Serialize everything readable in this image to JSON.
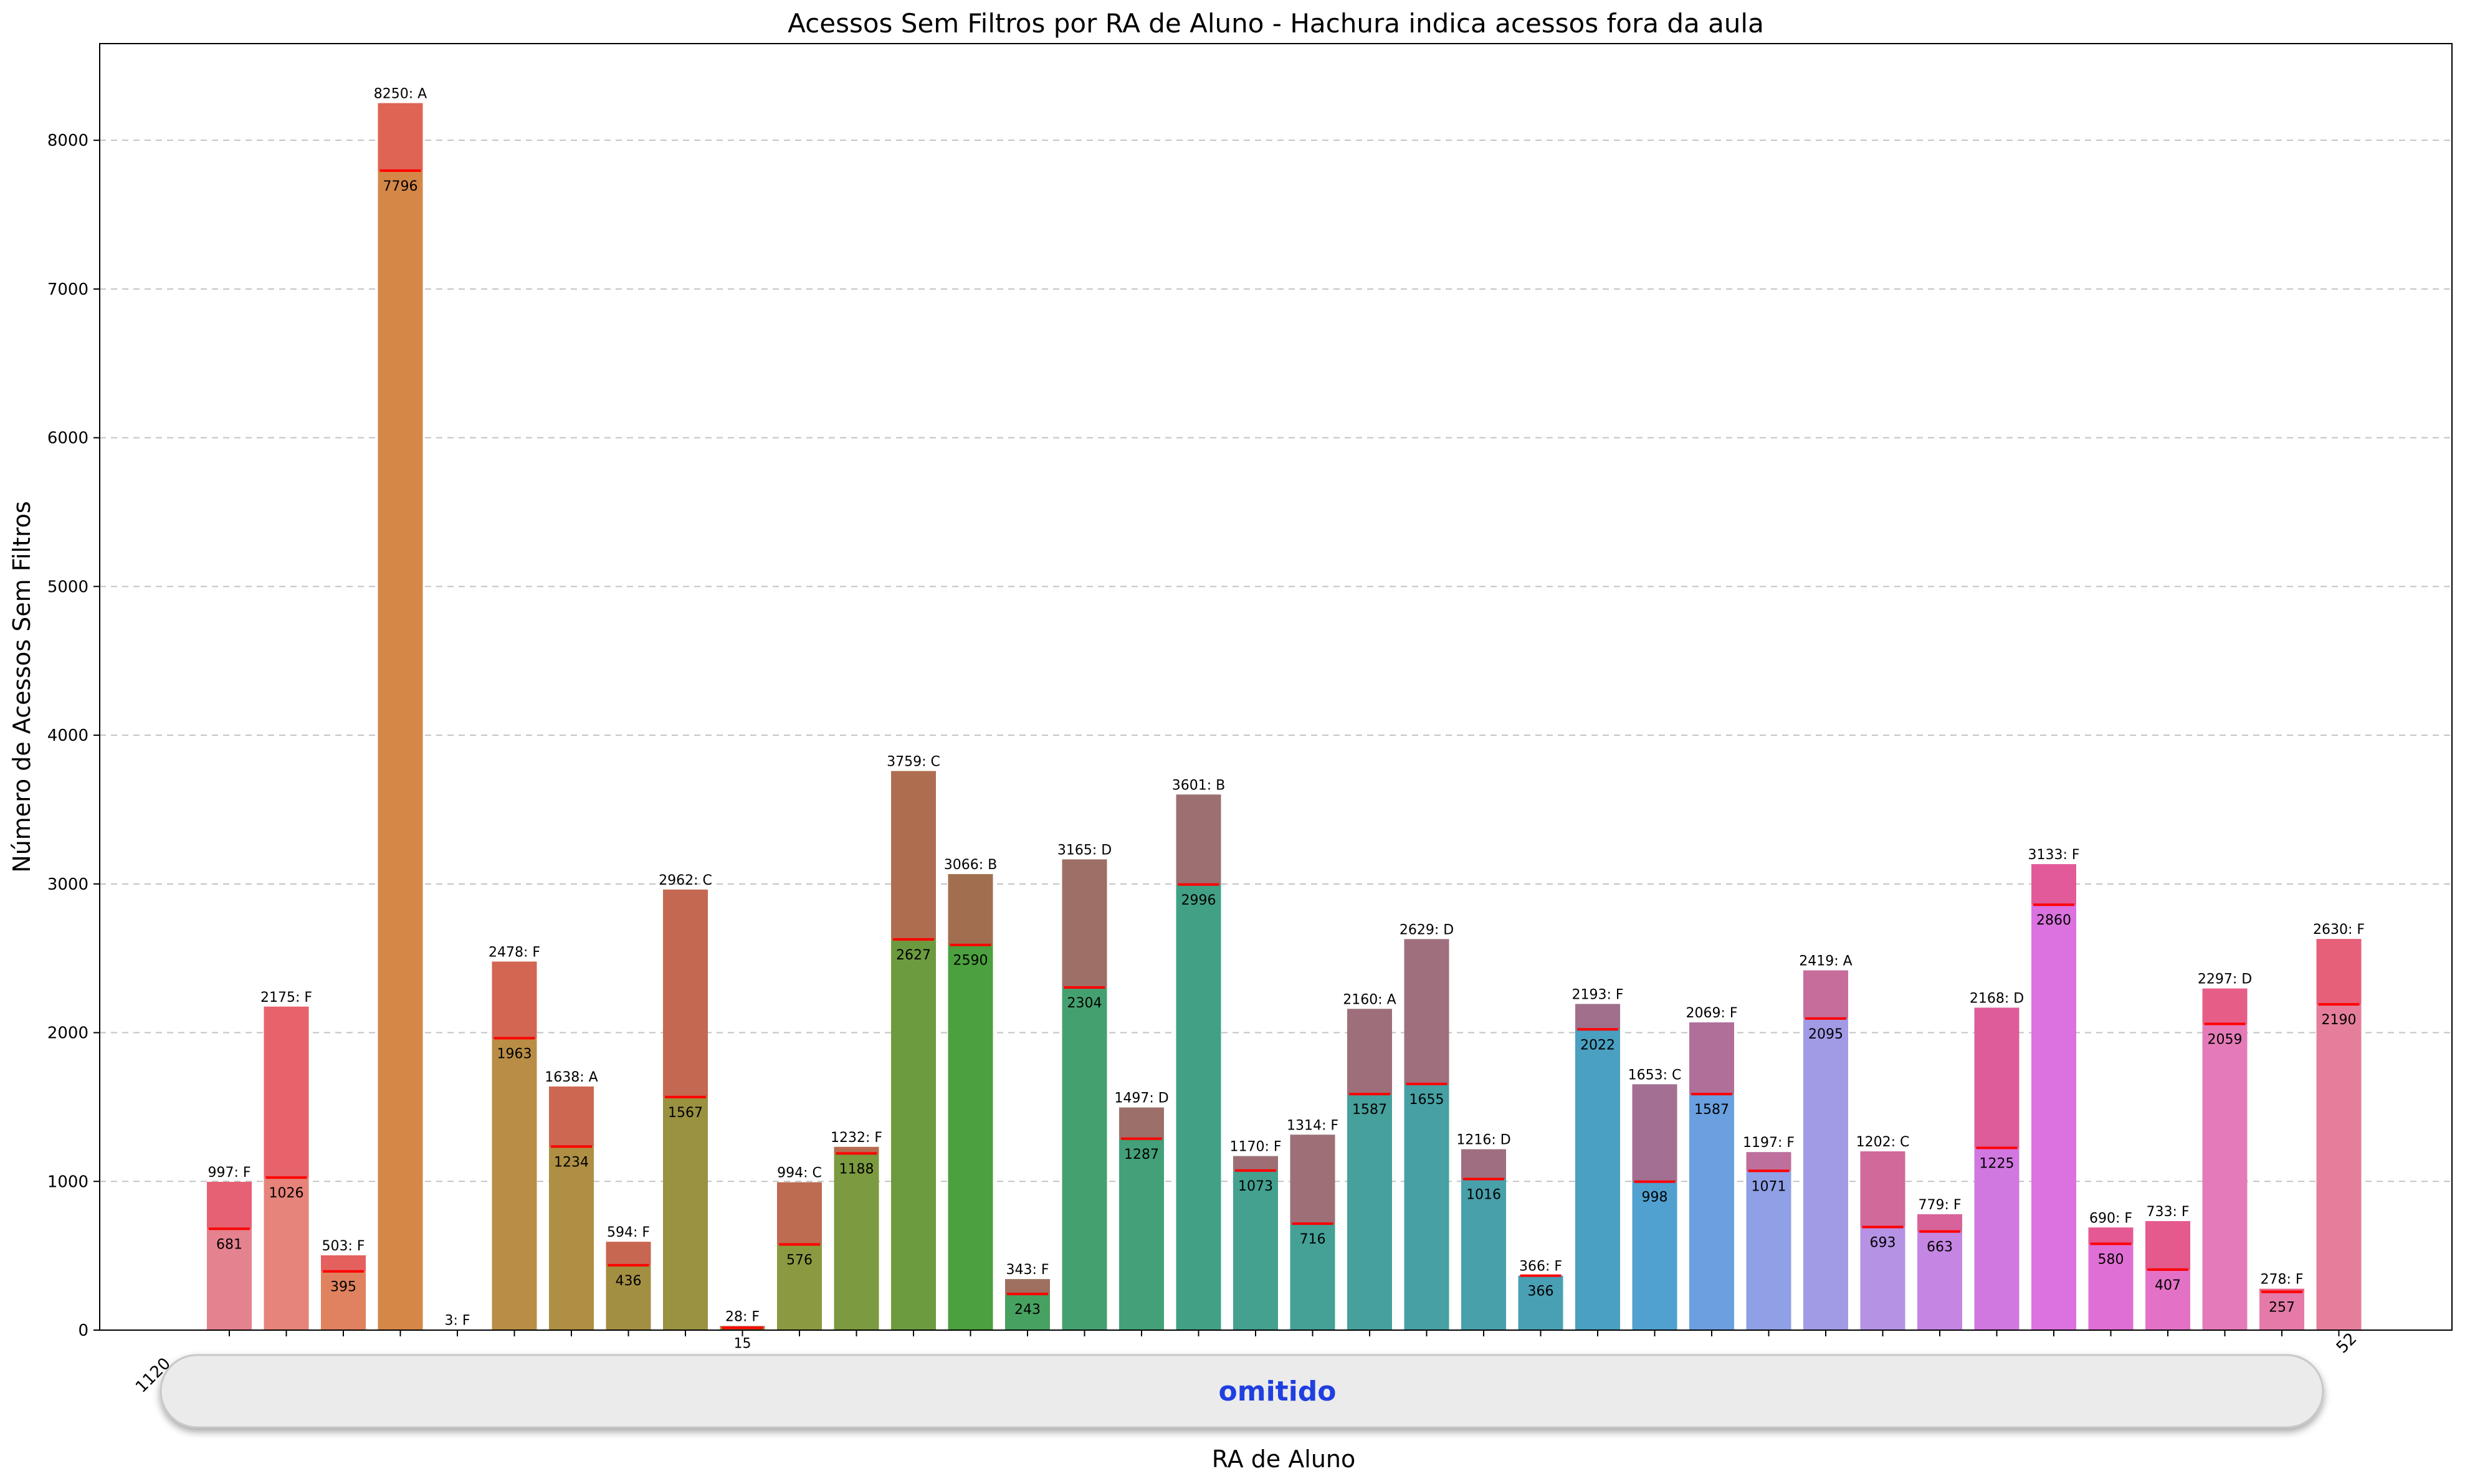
{
  "chart_data": {
    "type": "bar",
    "title": "Acessos Sem Filtros por RA de Aluno - Hachura indica acessos fora da aula",
    "xlabel": "RA de Aluno",
    "ylabel": "Número de Acessos Sem Filtros",
    "ylim": [
      0,
      8650
    ],
    "yticks": [
      0,
      1000,
      2000,
      3000,
      4000,
      5000,
      6000,
      7000,
      8000
    ],
    "grid": "horizontal dashed",
    "x_tick_fragments": [
      "1120",
      "52"
    ],
    "redaction_label": "omitido",
    "bars": [
      {
        "total": 997,
        "grade": "F",
        "top_label": "997: F",
        "in_class": 681,
        "color": "#e5828f"
      },
      {
        "total": 2175,
        "grade": "F",
        "top_label": "2175: F",
        "in_class": 1026,
        "color": "#e6837a"
      },
      {
        "total": 503,
        "grade": "F",
        "top_label": "503: F",
        "in_class": 395,
        "color": "#e0825f"
      },
      {
        "total": 8250,
        "grade": "A",
        "top_label": "8250: A",
        "in_class": 7796,
        "color": "#d58748"
      },
      {
        "total": 3,
        "grade": "F",
        "top_label": "3: F",
        "in_class": null,
        "color": "#c98a43"
      },
      {
        "total": 2478,
        "grade": "F",
        "top_label": "2478: F",
        "in_class": 1963,
        "color": "#b98d45"
      },
      {
        "total": 1638,
        "grade": "A",
        "top_label": "1638: A",
        "in_class": 1234,
        "color": "#ae8f44"
      },
      {
        "total": 594,
        "grade": "F",
        "top_label": "594: F",
        "in_class": 436,
        "color": "#a38f42"
      },
      {
        "total": 2962,
        "grade": "C",
        "top_label": "2962: C",
        "in_class": 1567,
        "color": "#9a9141"
      },
      {
        "total": 28,
        "grade": "F",
        "top_label": "28: F",
        "in_class": 15,
        "color": "#939540"
      },
      {
        "total": 994,
        "grade": "C",
        "top_label": "994: C",
        "in_class": 576,
        "color": "#8b9a40"
      },
      {
        "total": 1232,
        "grade": "F",
        "top_label": "1232: F",
        "in_class": 1188,
        "color": "#7c9a40"
      },
      {
        "total": 3759,
        "grade": "C",
        "top_label": "3759: C",
        "in_class": 2627,
        "color": "#6c9b3f"
      },
      {
        "total": 3066,
        "grade": "B",
        "top_label": "3066: B",
        "in_class": 2590,
        "color": "#4ca03f"
      },
      {
        "total": 343,
        "grade": "F",
        "top_label": "343: F",
        "in_class": 243,
        "color": "#47a160"
      },
      {
        "total": 3165,
        "grade": "D",
        "top_label": "3165: D",
        "in_class": 2304,
        "color": "#45a070"
      },
      {
        "total": 1497,
        "grade": "D",
        "top_label": "1497: D",
        "in_class": 1287,
        "color": "#43a078"
      },
      {
        "total": 3601,
        "grade": "B",
        "top_label": "3601: B",
        "in_class": 2996,
        "color": "#42a085"
      },
      {
        "total": 1170,
        "grade": "F",
        "top_label": "1170: F",
        "in_class": 1073,
        "color": "#44a08f"
      },
      {
        "total": 1314,
        "grade": "F",
        "top_label": "1314: F",
        "in_class": 716,
        "color": "#45a095"
      },
      {
        "total": 2160,
        "grade": "A",
        "top_label": "2160: A",
        "in_class": 1587,
        "color": "#46a09c"
      },
      {
        "total": 2629,
        "grade": "D",
        "top_label": "2629: D",
        "in_class": 1655,
        "color": "#47a0a3"
      },
      {
        "total": 1216,
        "grade": "D",
        "top_label": "1216: D",
        "in_class": 1016,
        "color": "#48a0ab"
      },
      {
        "total": 366,
        "grade": "F",
        "top_label": "366: F",
        "in_class": 366,
        "color": "#49a0b5"
      },
      {
        "total": 2193,
        "grade": "F",
        "top_label": "2193: F",
        "in_class": 2022,
        "color": "#4aa0c0"
      },
      {
        "total": 1653,
        "grade": "C",
        "top_label": "1653: C",
        "in_class": 998,
        "color": "#50a0d0"
      },
      {
        "total": 2069,
        "grade": "F",
        "top_label": "2069: F",
        "in_class": 1587,
        "color": "#6aa0e0"
      },
      {
        "total": 1197,
        "grade": "F",
        "top_label": "1197: F",
        "in_class": 1071,
        "color": "#8fa0e6"
      },
      {
        "total": 2419,
        "grade": "A",
        "top_label": "2419: A",
        "in_class": 2095,
        "color": "#a19be6"
      },
      {
        "total": 1202,
        "grade": "C",
        "top_label": "1202: C",
        "in_class": 693,
        "color": "#b592e4"
      },
      {
        "total": 779,
        "grade": "F",
        "top_label": "779: F",
        "in_class": 663,
        "color": "#c486e2"
      },
      {
        "total": 2168,
        "grade": "D",
        "top_label": "2168: D",
        "in_class": 1225,
        "color": "#d177e0"
      },
      {
        "total": 3133,
        "grade": "F",
        "top_label": "3133: F",
        "in_class": 2860,
        "color": "#db72df"
      },
      {
        "total": 690,
        "grade": "F",
        "top_label": "690: F",
        "in_class": 580,
        "color": "#e06fd5"
      },
      {
        "total": 733,
        "grade": "F",
        "top_label": "733: F",
        "in_class": 407,
        "color": "#e372c6"
      },
      {
        "total": 2297,
        "grade": "D",
        "top_label": "2297: D",
        "in_class": 2059,
        "color": "#e47bb8"
      },
      {
        "total": 278,
        "grade": "F",
        "top_label": "278: F",
        "in_class": 257,
        "color": "#e57aa8"
      },
      {
        "total": 2630,
        "grade": "F",
        "top_label": "2630: F",
        "in_class": 2190,
        "color": "#e57e9b"
      }
    ],
    "overlay_color": "#e8475f",
    "marker_color": "#ff0000"
  }
}
